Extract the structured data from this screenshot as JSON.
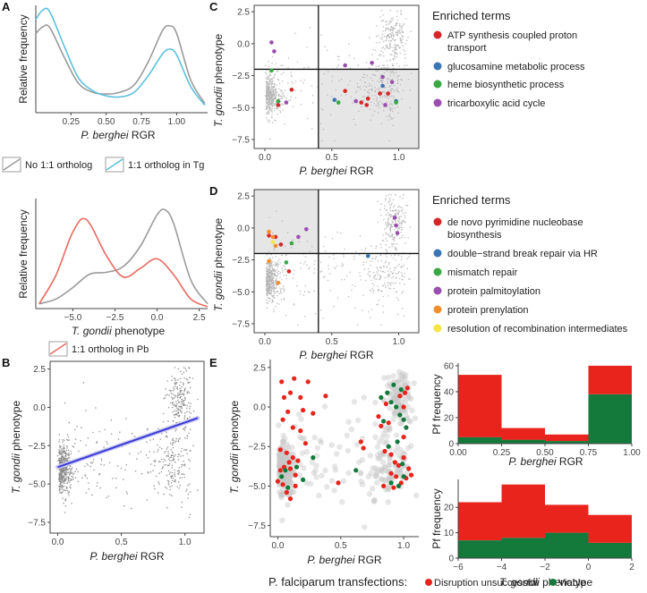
{
  "panel_letters": {
    "A": "A",
    "B": "B",
    "C": "C",
    "D": "D",
    "E": "E"
  },
  "labels": {
    "relative_frequency": "Relative frequency",
    "pb_species": "P. berghei",
    "rgr": " RGR",
    "tg_species": "T. gondii",
    "phenotype": " phenotype",
    "pf_frequency": "Pf frequency"
  },
  "legend_A1": {
    "items": [
      {
        "label": "No 1:1 ortholog",
        "color": "#9b9b9b"
      },
      {
        "label": "1:1 ortholog in Tg",
        "color": "#5bc0de"
      }
    ]
  },
  "legend_A2": {
    "items": [
      {
        "label": "1:1 ortholog in Pb",
        "color": "#e8695e"
      }
    ]
  },
  "enriched_C": {
    "title": "Enriched terms",
    "items": [
      {
        "line1": "ATP synthesis coupled proton",
        "line2": "transport",
        "color": "#d62728"
      },
      {
        "line1": "glucosamine metabolic process",
        "line2": "",
        "color": "#3a75b5"
      },
      {
        "line1": "heme biosynthetic process",
        "line2": "",
        "color": "#3aa845"
      },
      {
        "line1": "tricarboxylic acid cycle",
        "line2": "",
        "color": "#9a4fb0"
      }
    ]
  },
  "enriched_D": {
    "title": "Enriched terms",
    "items": [
      {
        "line1": "de novo pyrimidine nucleobase",
        "line2": "biosynthesis",
        "color": "#d62728"
      },
      {
        "line1": "double−strand break repair via HR",
        "line2": "",
        "color": "#3a75b5"
      },
      {
        "line1": "mismatch repair",
        "line2": "",
        "color": "#3aa845"
      },
      {
        "line1": "protein palmitoylation",
        "line2": "",
        "color": "#9a4fb0"
      },
      {
        "line1": "protein prenylation",
        "line2": "",
        "color": "#f28e2b"
      },
      {
        "line1": "resolution of recombination intermediates",
        "line2": "",
        "color": "#f5e642"
      }
    ]
  },
  "bottom_legend": {
    "title": "P. falciparum transfections:",
    "items": [
      {
        "label": "Disruption unsuccessful",
        "color": "#e8241c"
      },
      {
        "label": "Viable",
        "color": "#137a3c"
      }
    ]
  },
  "colors": {
    "grey_point": "#8a8a8a",
    "regression": "#3a3ad6",
    "shade": "#e6e6e6",
    "red": "#e8241c",
    "green": "#137a3c"
  },
  "chart_data": [
    {
      "id": "A1",
      "type": "line",
      "ylabel": "Relative frequency",
      "xlabel": "P. berghei RGR",
      "xlim": [
        0,
        1.22
      ],
      "ylim": [
        0,
        1.15
      ],
      "xticks": [
        "0.25",
        "0.50",
        "0.75",
        "1.00"
      ],
      "xtick_values": [
        0.25,
        0.5,
        0.75,
        1.0
      ],
      "series": [
        {
          "name": "No 1:1 ortholog",
          "color": "#9b9b9b",
          "x": [
            0,
            0.05,
            0.1,
            0.2,
            0.3,
            0.4,
            0.5,
            0.6,
            0.7,
            0.8,
            0.9,
            0.95,
            1.0,
            1.1,
            1.2
          ],
          "y": [
            0.85,
            0.92,
            0.91,
            0.6,
            0.32,
            0.22,
            0.2,
            0.22,
            0.3,
            0.55,
            0.88,
            0.93,
            0.85,
            0.35,
            0.1
          ]
        },
        {
          "name": "1:1 ortholog in Tg",
          "color": "#5bc0de",
          "x": [
            0,
            0.05,
            0.1,
            0.2,
            0.3,
            0.4,
            0.5,
            0.6,
            0.7,
            0.8,
            0.9,
            0.95,
            1.0,
            1.1,
            1.2
          ],
          "y": [
            1.0,
            1.1,
            1.08,
            0.72,
            0.38,
            0.24,
            0.18,
            0.17,
            0.22,
            0.4,
            0.63,
            0.68,
            0.62,
            0.28,
            0.08
          ]
        }
      ]
    },
    {
      "id": "A2",
      "type": "line",
      "ylabel": "Relative frequency",
      "xlabel": "T. gondii phenotype",
      "xlim": [
        -7.2,
        3.0
      ],
      "ylim": [
        0,
        1.15
      ],
      "xticks": [
        "−5.0",
        "−2.5",
        "0.0",
        "2.5"
      ],
      "xtick_values": [
        -5.0,
        -2.5,
        0.0,
        2.5
      ],
      "series": [
        {
          "name": "No 1:1 ortholog",
          "color": "#9b9b9b",
          "x": [
            -7,
            -6,
            -5,
            -4,
            -3,
            -2,
            -1,
            0,
            0.5,
            1,
            2,
            3
          ],
          "y": [
            0.05,
            0.1,
            0.22,
            0.36,
            0.38,
            0.44,
            0.65,
            0.98,
            1.03,
            0.88,
            0.3,
            0.05
          ]
        },
        {
          "name": "1:1 ortholog in Pb",
          "color": "#e8695e",
          "x": [
            -7,
            -6,
            -5,
            -4.2,
            -3,
            -2,
            -1,
            0,
            1,
            2,
            3
          ],
          "y": [
            0.05,
            0.35,
            0.8,
            0.93,
            0.55,
            0.33,
            0.42,
            0.52,
            0.35,
            0.1,
            0.02
          ]
        }
      ]
    },
    {
      "id": "B",
      "type": "scatter",
      "xlabel": "P. berghei RGR",
      "ylabel": "T. gondii phenotype",
      "xlim": [
        -0.06,
        1.15
      ],
      "ylim": [
        -8.2,
        3.0
      ],
      "xticks": [
        "0.0",
        "0.5",
        "1.0"
      ],
      "xtick_values": [
        0,
        0.5,
        1.0
      ],
      "yticks": [
        "2.5",
        "0.0",
        "−2.5",
        "−5.0",
        "−7.5"
      ],
      "ytick_values": [
        2.5,
        0.0,
        -2.5,
        -5.0,
        -7.5
      ],
      "regression": {
        "x": [
          0.0,
          1.1
        ],
        "y": [
          -3.9,
          -0.7
        ]
      }
    },
    {
      "id": "C",
      "type": "scatter",
      "xlabel": "P. berghei RGR",
      "ylabel": "T. gondii phenotype",
      "xlim": [
        -0.08,
        1.15
      ],
      "ylim": [
        -8.2,
        3.0
      ],
      "xticks": [
        "0.0",
        "0.5",
        "1.0"
      ],
      "xtick_values": [
        0,
        0.5,
        1.0
      ],
      "yticks": [
        "2.5",
        "0.0",
        "−2.5",
        "−5.0",
        "−7.5"
      ],
      "ytick_values": [
        2.5,
        0.0,
        -2.5,
        -5.0,
        -7.5
      ],
      "vline": 0.4,
      "hline": -2.0,
      "shaded": "lower-right",
      "enriched": [
        {
          "x": 0.05,
          "y": 0.1,
          "c": 3
        },
        {
          "x": 0.07,
          "y": -0.6,
          "c": 3
        },
        {
          "x": 0.6,
          "y": -1.7,
          "c": 3
        },
        {
          "x": 0.8,
          "y": -1.5,
          "c": 3
        },
        {
          "x": 0.88,
          "y": -2.6,
          "c": 3
        },
        {
          "x": 0.95,
          "y": -3.0,
          "c": 3
        },
        {
          "x": 0.2,
          "y": -3.6,
          "c": 0
        },
        {
          "x": 0.6,
          "y": -3.7,
          "c": 0
        },
        {
          "x": 0.72,
          "y": -4.6,
          "c": 0
        },
        {
          "x": 0.77,
          "y": -4.3,
          "c": 0
        },
        {
          "x": 0.86,
          "y": -3.9,
          "c": 0
        },
        {
          "x": 0.92,
          "y": -3.9,
          "c": 0
        },
        {
          "x": 0.1,
          "y": -4.8,
          "c": 0
        },
        {
          "x": 0.76,
          "y": -4.8,
          "c": 0
        },
        {
          "x": 0.52,
          "y": -4.4,
          "c": 1
        },
        {
          "x": 0.88,
          "y": -3.3,
          "c": 1
        },
        {
          "x": 0.98,
          "y": -4.5,
          "c": 1
        },
        {
          "x": 0.05,
          "y": -2.1,
          "c": 2
        },
        {
          "x": 0.1,
          "y": -4.5,
          "c": 2
        },
        {
          "x": 0.55,
          "y": -4.6,
          "c": 2
        },
        {
          "x": 0.98,
          "y": -4.6,
          "c": 2
        },
        {
          "x": 0.16,
          "y": -4.6,
          "c": 3
        },
        {
          "x": 0.68,
          "y": -4.5,
          "c": 3
        },
        {
          "x": 0.9,
          "y": -4.8,
          "c": 3
        }
      ]
    },
    {
      "id": "D",
      "type": "scatter",
      "xlabel": "P. berghei RGR",
      "ylabel": "T. gondii phenotype",
      "xlim": [
        -0.08,
        1.15
      ],
      "ylim": [
        -8.2,
        3.0
      ],
      "xticks": [
        "0.0",
        "0.5",
        "1.0"
      ],
      "xtick_values": [
        0,
        0.5,
        1.0
      ],
      "yticks": [
        "2.5",
        "0.0",
        "−2.5",
        "−5.0",
        "−7.5"
      ],
      "ytick_values": [
        2.5,
        0.0,
        -2.5,
        -5.0,
        -7.5
      ],
      "vline": 0.4,
      "hline": -2.0,
      "shaded": "upper-left",
      "enriched": [
        {
          "x": 0.03,
          "y": -0.6,
          "c": 0
        },
        {
          "x": 0.08,
          "y": -0.7,
          "c": 0
        },
        {
          "x": 0.12,
          "y": -1.3,
          "c": 0
        },
        {
          "x": 0.18,
          "y": -3.4,
          "c": 0
        },
        {
          "x": 0.77,
          "y": -2.2,
          "c": 1
        },
        {
          "x": 0.16,
          "y": -2.7,
          "c": 2
        },
        {
          "x": 0.2,
          "y": -1.2,
          "c": 2
        },
        {
          "x": 0.25,
          "y": -0.7,
          "c": 3
        },
        {
          "x": 0.31,
          "y": -0.1,
          "c": 3
        },
        {
          "x": 0.97,
          "y": 0.8,
          "c": 3
        },
        {
          "x": 0.98,
          "y": 0.2,
          "c": 3
        },
        {
          "x": 0.99,
          "y": -0.4,
          "c": 3
        },
        {
          "x": 0.03,
          "y": -0.3,
          "c": 4
        },
        {
          "x": 0.06,
          "y": -0.7,
          "c": 4
        },
        {
          "x": 0.08,
          "y": -1.4,
          "c": 4
        },
        {
          "x": 0.1,
          "y": -4.3,
          "c": 4
        },
        {
          "x": 0.03,
          "y": -2.6,
          "c": 4
        },
        {
          "x": 0.06,
          "y": -1.1,
          "c": 5
        }
      ]
    },
    {
      "id": "E",
      "type": "scatter",
      "xlabel": "P. berghei RGR",
      "ylabel": "T. gondii phenotype",
      "xlim": [
        -0.06,
        1.12
      ],
      "ylim": [
        -8.2,
        3.0
      ],
      "xticks": [
        "0.0",
        "0.5",
        "1.0"
      ],
      "xtick_values": [
        0,
        0.5,
        1.0
      ],
      "yticks": [
        "2.5",
        "0.0",
        "−2.5",
        "−5.0",
        "−7.5"
      ],
      "ytick_values": [
        2.5,
        0.0,
        -2.5,
        -5.0,
        -7.5
      ],
      "red_points": [
        [
          0.03,
          1.6
        ],
        [
          0.13,
          1.8
        ],
        [
          0.05,
          0.6
        ],
        [
          0.1,
          0.9
        ],
        [
          0.18,
          0.6
        ],
        [
          0.24,
          1.6
        ],
        [
          0.38,
          0.7
        ],
        [
          0.2,
          -0.2
        ],
        [
          0.28,
          -0.4
        ],
        [
          0.08,
          -0.3
        ],
        [
          0.04,
          -0.8
        ],
        [
          0.12,
          -1.3
        ],
        [
          0.18,
          -1.5
        ],
        [
          0.22,
          -2.3
        ],
        [
          0.02,
          -2.7
        ],
        [
          0.07,
          -2.9
        ],
        [
          0.12,
          -3.2
        ],
        [
          0.16,
          -3.4
        ],
        [
          0.05,
          -3.8
        ],
        [
          0.1,
          -3.9
        ],
        [
          0.14,
          -4.3
        ],
        [
          0.0,
          -4.7
        ],
        [
          0.04,
          -4.9
        ],
        [
          0.07,
          -5.4
        ],
        [
          0.1,
          -5.8
        ],
        [
          0.14,
          -5.0
        ],
        [
          0.02,
          -4.0
        ],
        [
          0.09,
          -3.5
        ],
        [
          0.48,
          -4.8
        ],
        [
          0.66,
          -2.2
        ],
        [
          0.68,
          -2.6
        ],
        [
          0.8,
          -0.6
        ],
        [
          0.82,
          -1.2
        ],
        [
          0.85,
          -2.8
        ],
        [
          0.9,
          -3.0
        ],
        [
          0.93,
          -3.5
        ],
        [
          0.96,
          -3.7
        ],
        [
          1.0,
          -3.2
        ],
        [
          1.04,
          -3.9
        ],
        [
          0.9,
          -4.2
        ],
        [
          0.94,
          -4.4
        ],
        [
          0.98,
          -4.8
        ],
        [
          1.02,
          -4.5
        ],
        [
          1.06,
          -4.3
        ],
        [
          0.88,
          -1.0
        ],
        [
          0.97,
          0.7
        ],
        [
          1.01,
          0.9
        ],
        [
          1.03,
          1.2
        ],
        [
          1.0,
          -1.9
        ],
        [
          0.84,
          -5.0
        ],
        [
          0.92,
          -5.1
        ],
        [
          1.0,
          0.0
        ],
        [
          0.86,
          0.2
        ]
      ],
      "green_points": [
        [
          0.06,
          -4.0
        ],
        [
          0.15,
          -3.8
        ],
        [
          0.08,
          -5.1
        ],
        [
          0.03,
          -4.4
        ],
        [
          0.2,
          -4.6
        ],
        [
          0.28,
          -3.2
        ],
        [
          0.62,
          -4.0
        ],
        [
          0.82,
          0.6
        ],
        [
          0.87,
          0.9
        ],
        [
          0.9,
          0.3
        ],
        [
          0.94,
          0.0
        ],
        [
          0.97,
          -0.5
        ],
        [
          1.0,
          -0.8
        ],
        [
          1.02,
          -1.3
        ],
        [
          0.84,
          -0.9
        ],
        [
          0.88,
          -2.5
        ],
        [
          0.95,
          -2.2
        ],
        [
          0.99,
          -3.6
        ],
        [
          0.9,
          -4.8
        ],
        [
          0.96,
          -5.0
        ],
        [
          1.0,
          -4.4
        ],
        [
          0.92,
          1.4
        ],
        [
          0.98,
          1.1
        ]
      ]
    },
    {
      "id": "E_hist_top",
      "type": "bar",
      "xlabel": "P. berghei RGR",
      "ylabel": "Pf frequency",
      "xlim": [
        0,
        1.0
      ],
      "ylim": [
        0,
        62
      ],
      "xticks": [
        "0.00",
        "0.25",
        "0.50",
        "0.75",
        "1.00"
      ],
      "xtick_values": [
        0,
        0.25,
        0.5,
        0.75,
        1.0
      ],
      "yticks": [
        "0",
        "20",
        "40",
        "60"
      ],
      "ytick_values": [
        0,
        20,
        40,
        60
      ],
      "bins": [
        [
          0,
          0.25
        ],
        [
          0.25,
          0.5
        ],
        [
          0.5,
          0.75
        ],
        [
          0.75,
          1.0
        ]
      ],
      "series": [
        {
          "name": "Viable",
          "color": "#137a3c",
          "values": [
            5,
            3,
            2,
            38
          ]
        },
        {
          "name": "Disruption unsuccessful",
          "color": "#e8241c",
          "values": [
            48,
            9,
            5,
            22
          ]
        }
      ]
    },
    {
      "id": "E_hist_bottom",
      "type": "bar",
      "xlabel": "T. gondii phenotype",
      "ylabel": "Pf frequency",
      "xlim": [
        -6,
        2
      ],
      "ylim": [
        0,
        31
      ],
      "xticks": [
        "−6",
        "−4",
        "−2",
        "0",
        "2"
      ],
      "xtick_values": [
        -6,
        -4,
        -2,
        0,
        2
      ],
      "yticks": [
        "0",
        "10",
        "20"
      ],
      "ytick_values": [
        0,
        10,
        20
      ],
      "bins": [
        [
          -6,
          -4
        ],
        [
          -4,
          -2
        ],
        [
          -2,
          0
        ],
        [
          0,
          2
        ]
      ],
      "series": [
        {
          "name": "Viable",
          "color": "#137a3c",
          "values": [
            7,
            8,
            10,
            6
          ]
        },
        {
          "name": "Disruption unsuccessful",
          "color": "#e8241c",
          "values": [
            15,
            21,
            11,
            11
          ]
        }
      ]
    }
  ]
}
